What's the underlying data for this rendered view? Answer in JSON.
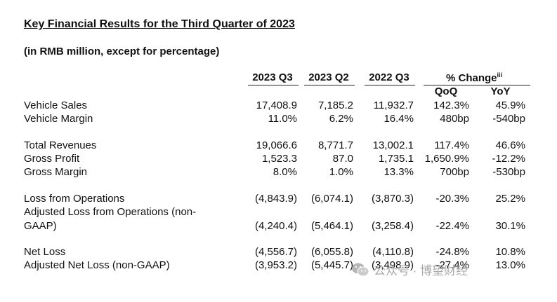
{
  "title": "Key Financial Results for the Third Quarter of 2023",
  "subtitle": "(in RMB million, except for percentage)",
  "headers": {
    "q3_2023": "2023 Q3",
    "q2_2023": "2023 Q2",
    "q3_2022": "2022 Q3",
    "pct_change": "% Change",
    "pct_change_sup": "iii",
    "qoq": "QoQ",
    "yoy": "YoY"
  },
  "rows": [
    {
      "label": "Vehicle Sales",
      "c1": "17,408.9",
      "c2": "7,185.2",
      "c3": "11,932.7",
      "c4": "142.3%",
      "c5": "45.9%"
    },
    {
      "label": "Vehicle Margin",
      "c1": "11.0%",
      "c2": "6.2%",
      "c3": "16.4%",
      "c4": "480bp",
      "c5": "-540bp"
    },
    {
      "label": "Total Revenues",
      "c1": "19,066.6",
      "c2": "8,771.7",
      "c3": "13,002.1",
      "c4": "117.4%",
      "c5": "46.6%"
    },
    {
      "label": "Gross Profit",
      "c1": "1,523.3",
      "c2": "87.0",
      "c3": "1,735.1",
      "c4": "1,650.9%",
      "c5": "-12.2%"
    },
    {
      "label": "Gross Margin",
      "c1": "8.0%",
      "c2": "1.0%",
      "c3": "13.3%",
      "c4": "700bp",
      "c5": "-530bp"
    },
    {
      "label": "Loss from Operations",
      "c1": "(4,843.9)",
      "c2": "(6,074.1)",
      "c3": "(3,870.3)",
      "c4": "-20.3%",
      "c5": "25.2%"
    },
    {
      "label": "Adjusted Loss from Operations (non-",
      "label2": "GAAP)",
      "c1": "(4,240.4)",
      "c2": "(5,464.1)",
      "c3": "(3,258.4)",
      "c4": "-22.4%",
      "c5": "30.1%"
    },
    {
      "label": "Net Loss",
      "c1": "(4,556.7)",
      "c2": "(6,055.8)",
      "c3": "(4,110.8)",
      "c4": "-24.8%",
      "c5": "10.8%"
    },
    {
      "label": "Adjusted Net Loss (non-GAAP)",
      "c1": "(3,953.2)",
      "c2": "(5,445.7)",
      "c3": "(3,498.9)",
      "c4": "-27.4%",
      "c5": "13.0%"
    }
  ],
  "watermark": {
    "text": "公众号 · 博望财经",
    "icon": "wechat-icon"
  }
}
